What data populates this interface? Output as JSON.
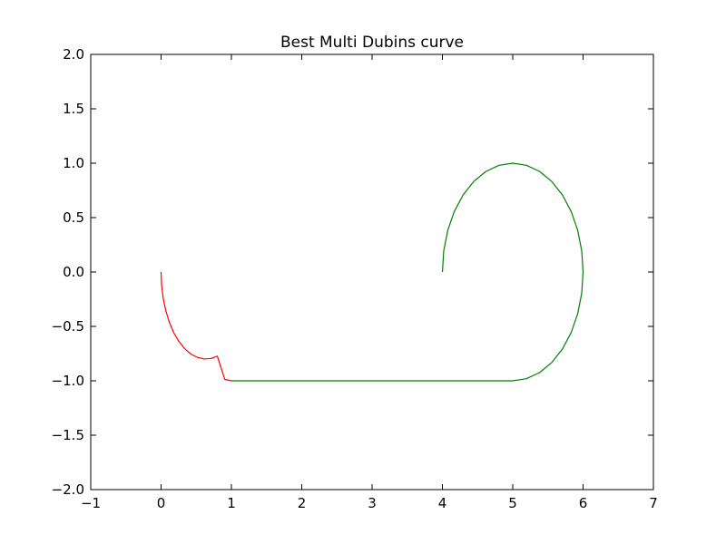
{
  "chart_data": {
    "type": "line",
    "title": "Best Multi Dubins curve",
    "xlabel": "",
    "ylabel": "",
    "xlim": [
      -1,
      7
    ],
    "ylim": [
      -2.0,
      2.0
    ],
    "x_ticks": [
      -1,
      0,
      1,
      2,
      3,
      4,
      5,
      6,
      7
    ],
    "x_tick_labels": [
      "−1",
      "0",
      "1",
      "2",
      "3",
      "4",
      "5",
      "6",
      "7"
    ],
    "y_ticks": [
      -2.0,
      -1.5,
      -1.0,
      -0.5,
      0.0,
      0.5,
      1.0,
      1.5,
      2.0
    ],
    "y_tick_labels": [
      "−2.0",
      "−1.5",
      "−1.0",
      "−0.5",
      "0.0",
      "0.5",
      "1.0",
      "1.5",
      "2.0"
    ],
    "grid": false,
    "legend": "none",
    "series": [
      {
        "color": "#ff0000",
        "points": [
          [
            0.0,
            0.0
          ],
          [
            0.0076,
            -0.1224
          ],
          [
            0.0302,
            -0.2419
          ],
          [
            0.067,
            -0.3557
          ],
          [
            0.117,
            -0.4612
          ],
          [
            0.1792,
            -0.5566
          ],
          [
            0.2526,
            -0.638
          ],
          [
            0.3348,
            -0.7046
          ],
          [
            0.4238,
            -0.7542
          ],
          [
            0.5172,
            -0.7856
          ],
          [
            0.6129,
            -0.7995
          ],
          [
            0.7076,
            -0.7954
          ],
          [
            0.8,
            -0.7735
          ],
          [
            0.9063,
            -0.9876
          ],
          [
            1.0,
            -1.0
          ]
        ]
      },
      {
        "color": "#008000",
        "points": [
          [
            1.0,
            -1.0
          ],
          [
            5.0,
            -1.0
          ],
          [
            5.1951,
            -0.9808
          ],
          [
            5.3827,
            -0.9239
          ],
          [
            5.5556,
            -0.8315
          ],
          [
            5.7071,
            -0.7071
          ],
          [
            5.8315,
            -0.5556
          ],
          [
            5.9239,
            -0.3827
          ],
          [
            5.9808,
            -0.1951
          ],
          [
            6.0,
            0.0
          ],
          [
            5.9808,
            0.1951
          ],
          [
            5.9239,
            0.3827
          ],
          [
            5.8315,
            0.5556
          ],
          [
            5.7071,
            0.7071
          ],
          [
            5.5556,
            0.8315
          ],
          [
            5.3827,
            0.9239
          ],
          [
            5.1951,
            0.9808
          ],
          [
            5.0,
            1.0
          ],
          [
            4.8049,
            0.9808
          ],
          [
            4.6173,
            0.9239
          ],
          [
            4.4444,
            0.8315
          ],
          [
            4.2929,
            0.7071
          ],
          [
            4.1685,
            0.5556
          ],
          [
            4.0761,
            0.3827
          ],
          [
            4.0192,
            0.1951
          ],
          [
            4.0,
            0.0
          ]
        ]
      }
    ]
  }
}
